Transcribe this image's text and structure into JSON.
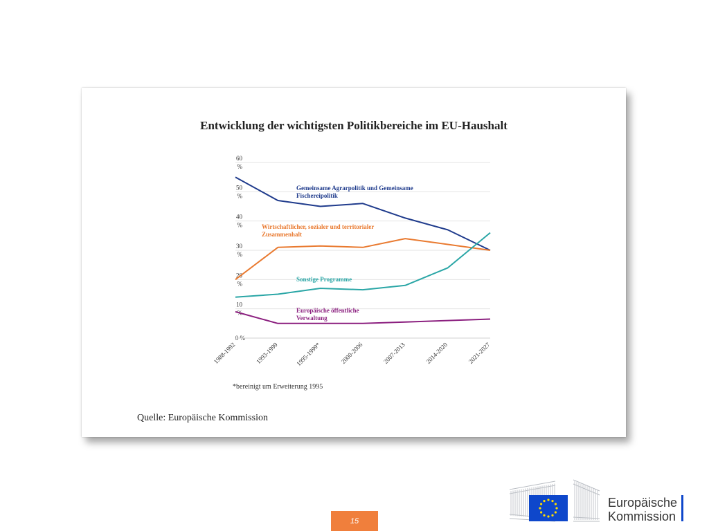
{
  "chart_data": {
    "type": "line",
    "title": "Entwicklung der wichtigsten Politikbereiche im EU-Haushalt",
    "categories": [
      "1988-1992",
      "1993-1999",
      "1995-1999*",
      "2000-2006",
      "2007-2013",
      "2014-2020",
      "2021-2027"
    ],
    "y_ticks": [
      "0 %",
      "10 %",
      "20 %",
      "30 %",
      "40 %",
      "50 %",
      "60 %"
    ],
    "ylim": [
      0,
      60
    ],
    "grid": true,
    "series": [
      {
        "name": "Gemeinsame Agrarpolitik und Gemeinsame Fischereipolitik",
        "label_lines": [
          "Gemeinsame Agrarpolitik und Gemeinsame",
          "Fischereipolitik"
        ],
        "color": "#1f3b8c",
        "values": [
          55,
          47,
          45,
          46,
          41,
          37,
          30
        ]
      },
      {
        "name": "Wirtschaftlicher, sozialer und territorialer Zusammenhalt",
        "label_lines": [
          "Wirtschaftlicher, sozialer und territorialer",
          "Zusammenhalt"
        ],
        "color": "#e97a30",
        "values": [
          20,
          31,
          31.5,
          31,
          34,
          32,
          30
        ]
      },
      {
        "name": "Sonstige Programme",
        "label_lines": [
          "Sonstige Programme"
        ],
        "color": "#2aa6a6",
        "values": [
          14,
          15,
          17,
          16.5,
          18,
          24,
          36
        ]
      },
      {
        "name": "Europäische öffentliche Verwaltung",
        "label_lines": [
          "Europäische öffentliche",
          "Verwaltung"
        ],
        "color": "#8b1f7f",
        "values": [
          9,
          5,
          5,
          5,
          5.5,
          6,
          6.5
        ]
      }
    ],
    "footnote": "*bereinigt um Erweiterung 1995",
    "source": "Quelle: Europäische Kommission"
  },
  "footer": {
    "page_number": "15",
    "logo_line1": "Europäische",
    "logo_line2": "Kommission"
  },
  "colors": {
    "accent": "#f07f3c",
    "eu_blue": "#0e47cb",
    "eu_star": "#ffdd00"
  }
}
